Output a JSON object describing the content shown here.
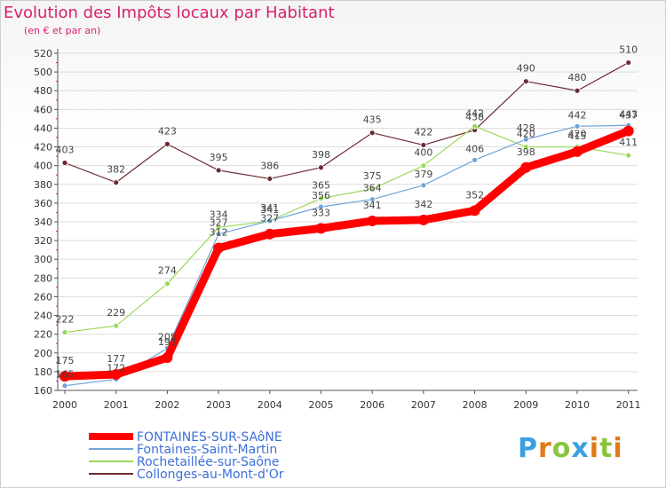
{
  "title": "Evolution des Impôts locaux par Habitant",
  "subtitle": "(en € et par an)",
  "logo": "Proxiti",
  "colors": {
    "title": "#d8206e",
    "axis": "#555555",
    "grid": "#dddddd"
  },
  "chart_data": {
    "type": "line",
    "title": "Evolution des Impôts locaux par Habitant",
    "ylabel": "(en € et par an)",
    "xlabel": "",
    "x": [
      "2000",
      "2001",
      "2002",
      "2003",
      "2004",
      "2005",
      "2006",
      "2007",
      "2008",
      "2009",
      "2010",
      "2011"
    ],
    "ylim": [
      160,
      520
    ],
    "yticks": [
      160,
      180,
      200,
      220,
      240,
      260,
      280,
      300,
      320,
      340,
      360,
      380,
      400,
      420,
      440,
      460,
      480,
      500,
      520
    ],
    "grid": "horizontal",
    "legend_position": "bottom-left",
    "series": [
      {
        "name": "FONTAINES-SUR-SAôNE",
        "color": "#ff0000",
        "width": 9,
        "marker": 6,
        "values": [
          175,
          177,
          195,
          312,
          327,
          333,
          341,
          342,
          352,
          398,
          415,
          437
        ],
        "labels": [
          "175",
          "177",
          "195",
          "312",
          "327",
          "333",
          "341",
          "342",
          "352",
          "398",
          "415",
          "437"
        ]
      },
      {
        "name": "Fontaines-Saint-Martin",
        "color": "#6fa3d6",
        "width": 1.2,
        "marker": 3,
        "values": [
          165,
          172,
          205,
          327,
          341,
          356,
          364,
          379,
          406,
          428,
          442,
          443
        ],
        "labels": [
          "165",
          "172",
          "205",
          "327",
          "341",
          "356",
          "364",
          "379",
          "406",
          "428",
          "442",
          "443"
        ]
      },
      {
        "name": "Rochetaillée-sur-Saône",
        "color": "#9ad85a",
        "width": 1.2,
        "marker": 3,
        "values": [
          222,
          229,
          274,
          334,
          341,
          365,
          375,
          400,
          442,
          420,
          420,
          411
        ],
        "labels": [
          "222",
          "229",
          "274",
          "334",
          "341",
          "365",
          "375",
          "400",
          "442",
          "420",
          "420",
          "411"
        ]
      },
      {
        "name": "Collonges-au-Mont-d'Or",
        "color": "#6b2a32",
        "width": 1.2,
        "marker": 3,
        "values": [
          403,
          382,
          423,
          395,
          386,
          398,
          435,
          422,
          438,
          490,
          480,
          510
        ],
        "labels": [
          "403",
          "382",
          "423",
          "395",
          "386",
          "398",
          "435",
          "422",
          "438",
          "490",
          "480",
          "510"
        ]
      }
    ]
  }
}
